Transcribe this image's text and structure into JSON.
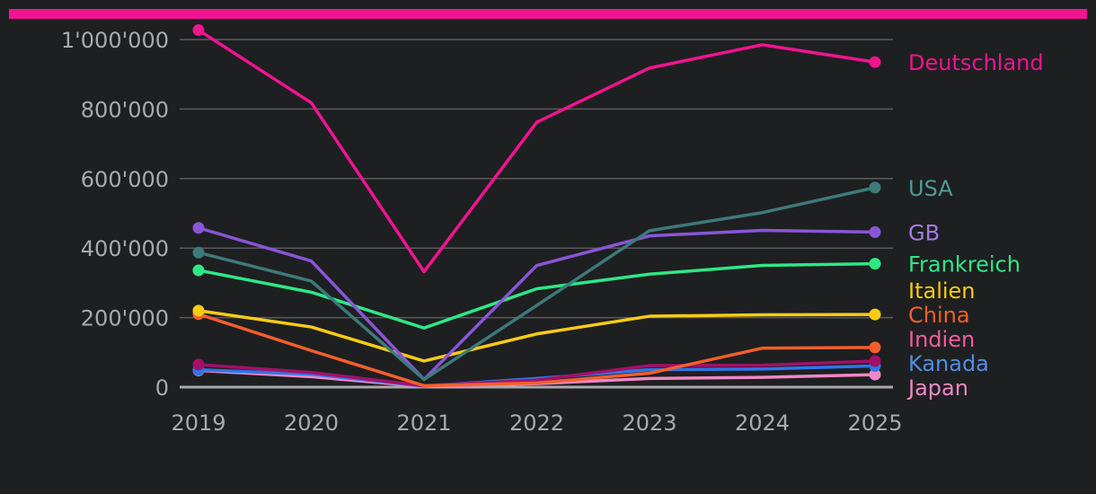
{
  "colors": {
    "background": "#1e1f21",
    "accent_bar": "#f0148f",
    "grid": "#5a5b5e",
    "axis": "#a9aaad",
    "tick_text": "#a9aaad"
  },
  "chart_data": {
    "type": "line",
    "title": "",
    "xlabel": "",
    "ylabel": "",
    "x": [
      "2019",
      "2020",
      "2021",
      "2022",
      "2023",
      "2024",
      "2025"
    ],
    "y_ticks": [
      0,
      200000,
      400000,
      600000,
      800000,
      1000000
    ],
    "y_tick_labels": [
      "0",
      "200'000",
      "400'000",
      "600'000",
      "800'000",
      "1'000'000"
    ],
    "ylim": [
      0,
      1000000
    ],
    "grid": true,
    "legend": "direct labels at right end of lines",
    "series": [
      {
        "name": "Deutschland",
        "color": "#f0148f",
        "values": [
          1027000,
          818000,
          332000,
          762000,
          918000,
          985000,
          935000
        ]
      },
      {
        "name": "USA",
        "color": "#3d7a7a",
        "label_color": "#4f9b96",
        "values": [
          387000,
          305000,
          22000,
          235000,
          450000,
          502000,
          574000
        ]
      },
      {
        "name": "GB",
        "color": "#8a55d8",
        "label_color": "#a47ae8",
        "values": [
          458000,
          363000,
          22000,
          350000,
          435000,
          451000,
          446000
        ]
      },
      {
        "name": "Frankreich",
        "color": "#2ee885",
        "values": [
          336000,
          273000,
          170000,
          283000,
          325000,
          350000,
          355000
        ]
      },
      {
        "name": "Italien",
        "color": "#f9cc14",
        "values": [
          220000,
          173000,
          75000,
          153000,
          204000,
          208000,
          209000
        ]
      },
      {
        "name": "China",
        "color": "#f25f2c",
        "values": [
          210000,
          105000,
          4000,
          12000,
          40000,
          112000,
          114000
        ]
      },
      {
        "name": "Indien",
        "color": "#a3106a",
        "label_color": "#ef5e99",
        "values": [
          65000,
          42000,
          4000,
          20000,
          62000,
          63000,
          75000
        ]
      },
      {
        "name": "Kanada",
        "color": "#2f76e8",
        "label_color": "#4f8de6",
        "values": [
          50000,
          37000,
          3000,
          25000,
          50000,
          52000,
          61000
        ]
      },
      {
        "name": "Japan",
        "color": "#f087c6",
        "values": [
          48000,
          30000,
          2000,
          10000,
          25000,
          28000,
          36000
        ]
      }
    ]
  }
}
